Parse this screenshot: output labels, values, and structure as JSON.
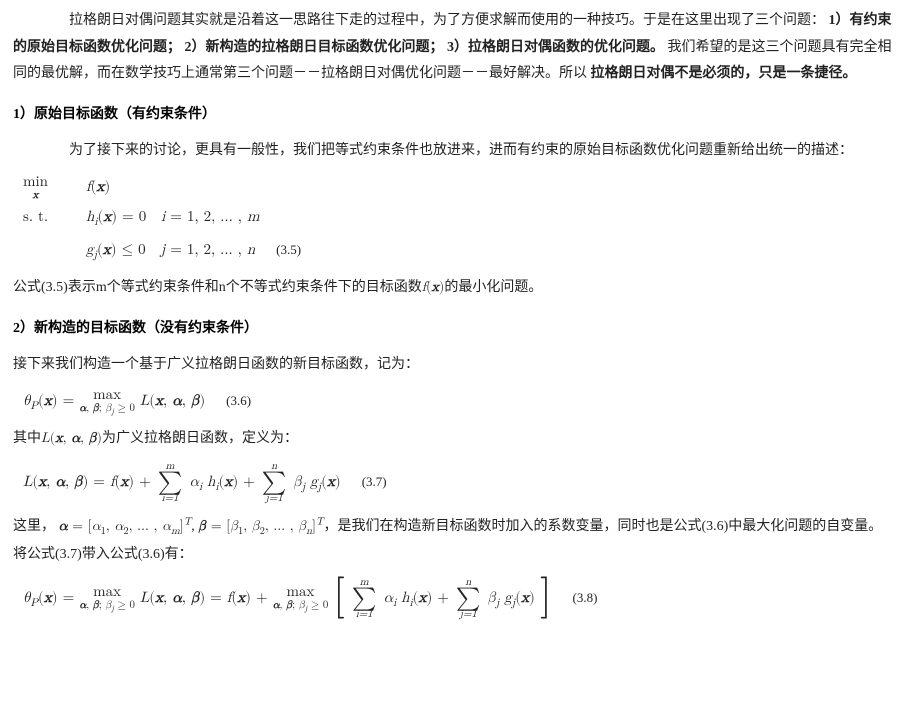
{
  "p1": {
    "a": "拉格朗日对偶问题其实就是沿着这一思路往下走的过程中，为了方便求解而使用的一种技巧。于是在这里出现了三个问题：",
    "b1": "1）有约束的原始目标函数优化问题；",
    "b2": "2）新构造的拉格朗日目标函数优化问题；",
    "b3": "3）拉格朗日对偶函数的优化问题。",
    "c": "我们希望的是这三个问题具有完全相同的最优解，而在数学技巧上通常第三个问题－－拉格朗日对偶优化问题－－最好解决。所以",
    "d": "拉格朗日对偶不是必须的，只是一条捷径。"
  },
  "s1": "1）原始目标函数（有约束条件）",
  "p2": "为了接下来的讨论，更具有一般性，我们把等式约束条件也放进来，进而有约束的原始目标函数优化问题重新给出统一的描述：",
  "eq35": {
    "l1a": "min",
    "l1b": "x",
    "l1c": "f(x)",
    "l2a": "s. t.",
    "l2b": "h",
    "l2c": "i",
    "l2d": "(x) = 0",
    "l2e": "i = 1, 2, …, m",
    "l3a": "g",
    "l3b": "j",
    "l3c": "(x) ≤ 0",
    "l3d": "j = 1, 2, …, n",
    "no": "(3.5)"
  },
  "p3a": "公式(3.5)表示m个等式约束条件和n个不等式约束条件下的目标函数",
  "p3b": "f(x)",
  "p3c": "的最小化问题。",
  "s2": "2）新构造的目标函数（没有约束条件）",
  "p4": "接下来我们构造一个基于广义拉格朗日函数的新目标函数，记为：",
  "eq36": {
    "lhs_th": "θ",
    "lhs_P": "P",
    "lhs_x": "(x) = ",
    "max": "max",
    "maxsub": "α, β; β_j ≥ 0",
    "rhs": "L(x, α, β)",
    "no": "(3.6)"
  },
  "p5a": "其中",
  "p5b": "L(x, α, β)",
  "p5c": "为广义拉格朗日函数，定义为：",
  "eq37": {
    "lhs": "L(x, α, β) = f(x) + ",
    "s1_top": "m",
    "s1_bot": "i=1",
    "s1_term": "αᵢ hᵢ(x)",
    "plus": " + ",
    "s2_top": "n",
    "s2_bot": "j=1",
    "s2_term": "βⱼ gⱼ(x)",
    "no": "(3.7)"
  },
  "p6a": "这里，",
  "p6b": "α = [α₁, α₂, …, αₘ]ᵀ",
  "p6c": ", ",
  "p6d": "β = [β₁, β₂, …, βₙ]ᵀ",
  "p6e": "，是我们在构造新目标函数时加入的系数变量，同时也是公式(3.6)中最大化问题的自变量。将公式(3.7)带入公式(3.6)有：",
  "eq38": {
    "lhs": "θ_P(x) = ",
    "max1": "max",
    "max1sub": "α, β; β_j ≥ 0",
    "mid": " L(x, α, β) = f(x) + ",
    "max2": "max",
    "max2sub": "α, β; β_j ≥ 0",
    "s1_top": "m",
    "s1_bot": "i=1",
    "s1_term": "αᵢ hᵢ(x)",
    "plus": " + ",
    "s2_top": "n",
    "s2_bot": "j=1",
    "s2_term": "βⱼ gⱼ(x)",
    "no": "(3.8)"
  }
}
